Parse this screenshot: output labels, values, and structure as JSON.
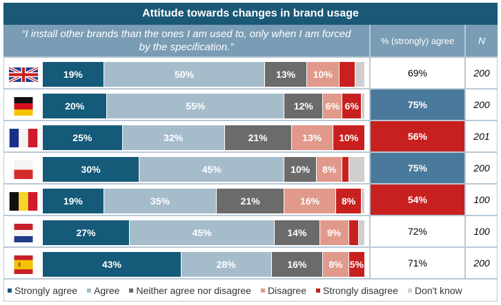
{
  "title": "Attitude towards changes in brand usage",
  "header": {
    "statement": "“I install other brands than the ones I am used to, only when I am forced by the specification.”",
    "agree_col": "% (strongly) agree",
    "n_col": "N"
  },
  "colors": {
    "strongly_agree": "#155a78",
    "agree": "#a5bccb",
    "neither": "#6b6b6b",
    "disagree": "#e0998a",
    "strongly_disagree": "#c8201f",
    "dont_know": "#cfcfcf",
    "highlight_high": "#4a7a9b",
    "highlight_low": "#c8201f"
  },
  "chart_data": {
    "type": "bar",
    "orientation": "horizontal-stacked-100",
    "title": "Attitude towards changes in brand usage",
    "subtitle": "“I install other brands than the ones I am used to, only when I am forced by the specification.”",
    "categories": [
      "United Kingdom",
      "Germany",
      "France",
      "Poland",
      "Belgium",
      "Netherlands",
      "Spain"
    ],
    "flag_icons": [
      "uk-flag-icon",
      "germany-flag-icon",
      "france-flag-icon",
      "poland-flag-icon",
      "belgium-flag-icon",
      "netherlands-flag-icon",
      "spain-flag-icon"
    ],
    "series": [
      {
        "name": "Strongly agree",
        "key": "strongly_agree",
        "values": [
          19,
          20,
          25,
          30,
          19,
          27,
          43
        ],
        "labels": [
          "19%",
          "20%",
          "25%",
          "30%",
          "19%",
          "27%",
          "43%"
        ]
      },
      {
        "name": "Agree",
        "key": "agree",
        "values": [
          50,
          55,
          32,
          45,
          35,
          45,
          28
        ],
        "labels": [
          "50%",
          "55%",
          "32%",
          "45%",
          "35%",
          "45%",
          "28%"
        ]
      },
      {
        "name": "Neither agree nor disagree",
        "key": "neither",
        "values": [
          13,
          12,
          21,
          10,
          21,
          14,
          16
        ],
        "labels": [
          "13%",
          "12%",
          "21%",
          "10%",
          "21%",
          "14%",
          "16%"
        ]
      },
      {
        "name": "Disagree",
        "key": "disagree",
        "values": [
          10,
          6,
          13,
          8,
          16,
          9,
          8
        ],
        "labels": [
          "10%",
          "6%",
          "13%",
          "8%",
          "16%",
          "9%",
          "8%"
        ]
      },
      {
        "name": "Strongly disagree",
        "key": "strongly_disagree",
        "values": [
          5,
          6,
          10,
          2,
          8,
          3,
          5
        ],
        "labels": [
          "",
          "6%",
          "10%",
          "",
          "8%",
          "",
          "5%"
        ]
      },
      {
        "name": "Don't know",
        "key": "dont_know",
        "values": [
          3,
          1,
          0,
          5,
          1,
          2,
          0
        ],
        "labels": [
          "",
          "",
          "",
          "",
          "",
          "",
          ""
        ]
      }
    ],
    "agree_total": [
      "69%",
      "75%",
      "56%",
      "75%",
      "54%",
      "72%",
      "71%"
    ],
    "agree_highlight": [
      "none",
      "high",
      "low",
      "high",
      "low",
      "none",
      "none"
    ],
    "n": [
      "200",
      "200",
      "201",
      "200",
      "100",
      "100",
      "200"
    ],
    "xlim": [
      0,
      100
    ],
    "legend_position": "bottom"
  }
}
